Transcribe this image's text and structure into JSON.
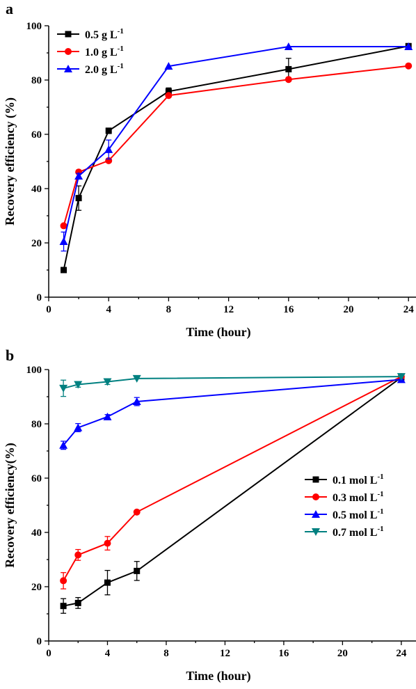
{
  "chart_data": [
    {
      "type": "line",
      "panel_label": "a",
      "xlabel": "Time (hour)",
      "ylabel": "Recovery efficiency (%)",
      "xlim": [
        0,
        24.5
      ],
      "ylim": [
        0,
        100
      ],
      "xticks": [
        0,
        4,
        8,
        12,
        16,
        20,
        24
      ],
      "yticks": [
        0,
        20,
        40,
        60,
        80,
        100
      ],
      "legend_position": "top-left",
      "series": [
        {
          "name": "0.5 g L",
          "name_sup": "-1",
          "color": "#000000",
          "marker": "square",
          "points": [
            {
              "x": 1,
              "y": 10,
              "err": 0
            },
            {
              "x": 2,
              "y": 36.5,
              "err": 4.5
            },
            {
              "x": 4,
              "y": 61.3,
              "err": 1
            },
            {
              "x": 8,
              "y": 75.8,
              "err": 1.3
            },
            {
              "x": 16,
              "y": 84,
              "err": 4
            },
            {
              "x": 24,
              "y": 92.5,
              "err": 0.5
            }
          ]
        },
        {
          "name": "1.0 g L",
          "name_sup": "-1",
          "color": "#ff0000",
          "marker": "circle",
          "points": [
            {
              "x": 1,
              "y": 26.3,
              "err": 0
            },
            {
              "x": 2,
              "y": 46.1,
              "err": 0
            },
            {
              "x": 4,
              "y": 50.3,
              "err": 0
            },
            {
              "x": 8,
              "y": 74.3,
              "err": 0
            },
            {
              "x": 16,
              "y": 80.2,
              "err": 0
            },
            {
              "x": 24,
              "y": 85.2,
              "err": 0
            }
          ]
        },
        {
          "name": "2.0 g L",
          "name_sup": "-1",
          "color": "#0000ff",
          "marker": "triangle-up",
          "points": [
            {
              "x": 1,
              "y": 20.5,
              "err": 3.5
            },
            {
              "x": 2,
              "y": 44.6,
              "err": 1
            },
            {
              "x": 4,
              "y": 54.4,
              "err": 3.5
            },
            {
              "x": 8,
              "y": 85.1,
              "err": 0
            },
            {
              "x": 16,
              "y": 92.3,
              "err": 0
            },
            {
              "x": 24,
              "y": 92.3,
              "err": 0
            }
          ]
        }
      ]
    },
    {
      "type": "line",
      "panel_label": "b",
      "xlabel": "Time (hour)",
      "ylabel": "Recovery efficiency(%)",
      "xlim": [
        0,
        25
      ],
      "ylim": [
        0,
        100
      ],
      "xticks": [
        0,
        4,
        8,
        12,
        16,
        20,
        24
      ],
      "yticks": [
        0,
        20,
        40,
        60,
        80,
        100
      ],
      "legend_position": "center-right",
      "series": [
        {
          "name": "0.1 mol L",
          "name_sup": "-1",
          "color": "#000000",
          "marker": "square",
          "points": [
            {
              "x": 1,
              "y": 12.9,
              "err": 2.7
            },
            {
              "x": 2,
              "y": 14,
              "err": 2
            },
            {
              "x": 4,
              "y": 21.5,
              "err": 4.5
            },
            {
              "x": 6,
              "y": 25.8,
              "err": 3.5
            },
            {
              "x": 24,
              "y": 97.1,
              "err": 0
            }
          ]
        },
        {
          "name": "0.3 mol L",
          "name_sup": "-1",
          "color": "#ff0000",
          "marker": "circle",
          "points": [
            {
              "x": 1,
              "y": 22.2,
              "err": 3
            },
            {
              "x": 2,
              "y": 31.7,
              "err": 2
            },
            {
              "x": 4,
              "y": 36,
              "err": 2.5
            },
            {
              "x": 6,
              "y": 47.5,
              "err": 0
            },
            {
              "x": 24,
              "y": 97.4,
              "err": 0
            }
          ]
        },
        {
          "name": "0.5 mol L",
          "name_sup": "-1",
          "color": "#0000ff",
          "marker": "triangle-up",
          "points": [
            {
              "x": 1,
              "y": 72.1,
              "err": 1.5
            },
            {
              "x": 2,
              "y": 78.6,
              "err": 1.5
            },
            {
              "x": 4,
              "y": 82.6,
              "err": 0.8
            },
            {
              "x": 6,
              "y": 88.2,
              "err": 1.5
            },
            {
              "x": 24,
              "y": 96.3,
              "err": 0
            }
          ]
        },
        {
          "name": "0.7 mol L",
          "name_sup": "-1",
          "color": "#008080",
          "marker": "triangle-down",
          "points": [
            {
              "x": 1,
              "y": 93.1,
              "err": 3
            },
            {
              "x": 2,
              "y": 94.5,
              "err": 1
            },
            {
              "x": 4,
              "y": 95.5,
              "err": 1
            },
            {
              "x": 6,
              "y": 96.7,
              "err": 0
            },
            {
              "x": 24,
              "y": 97.4,
              "err": 0
            }
          ]
        }
      ]
    }
  ]
}
